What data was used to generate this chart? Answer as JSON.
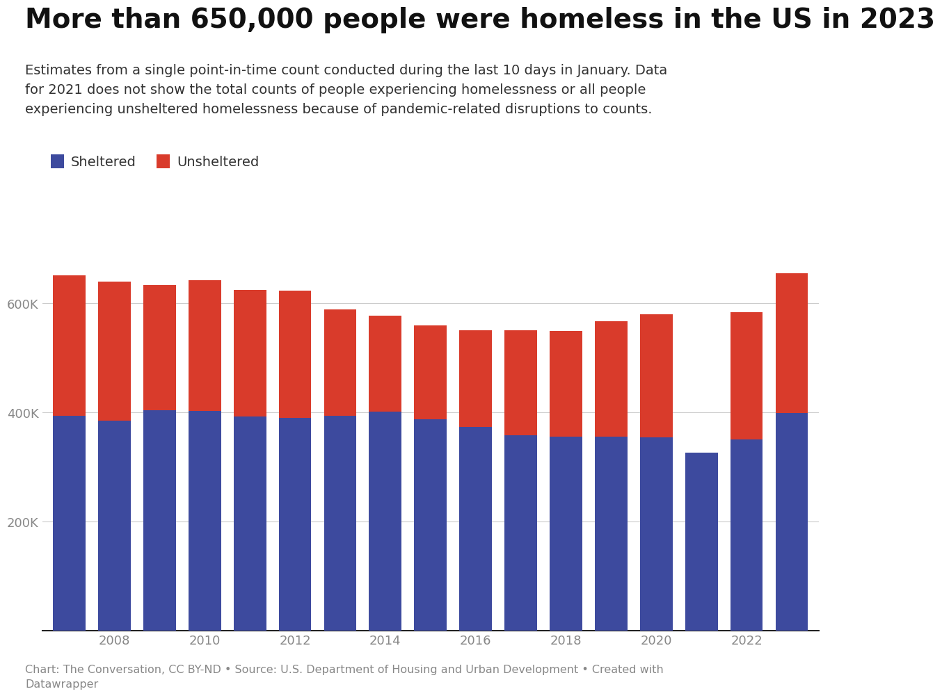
{
  "years": [
    2007,
    2008,
    2009,
    2010,
    2011,
    2012,
    2013,
    2014,
    2015,
    2016,
    2017,
    2018,
    2019,
    2020,
    2021,
    2022,
    2023
  ],
  "sheltered": [
    394000,
    385000,
    404000,
    403000,
    392000,
    390000,
    394000,
    401000,
    387000,
    373000,
    358000,
    356000,
    356000,
    354000,
    326000,
    350000,
    399000
  ],
  "unsheltered": [
    258000,
    255000,
    230000,
    239000,
    233000,
    233000,
    195000,
    177000,
    173000,
    178000,
    193000,
    194000,
    211000,
    226000,
    0,
    234000,
    256000
  ],
  "sheltered_color": "#3d4a9e",
  "unsheltered_color": "#d93b2b",
  "title": "More than 650,000 people were homeless in the US in 2023",
  "subtitle": "Estimates from a single point-in-time count conducted during the last 10 days in January. Data\nfor 2021 does not show the total counts of people experiencing homelessness or all people\nexperiencing unsheltered homelessness because of pandemic-related disruptions to counts.",
  "footnote": "Chart: The Conversation, CC BY-ND • Source: U.S. Department of Housing and Urban Development • Created with\nDatawrapper",
  "legend_sheltered": "Sheltered",
  "legend_unsheltered": "Unsheltered",
  "ylim": [
    0,
    700000
  ],
  "background_color": "#ffffff",
  "grid_color": "#cccccc",
  "title_fontsize": 28,
  "subtitle_fontsize": 14,
  "footnote_fontsize": 11.5,
  "tick_fontsize": 13,
  "legend_fontsize": 14
}
